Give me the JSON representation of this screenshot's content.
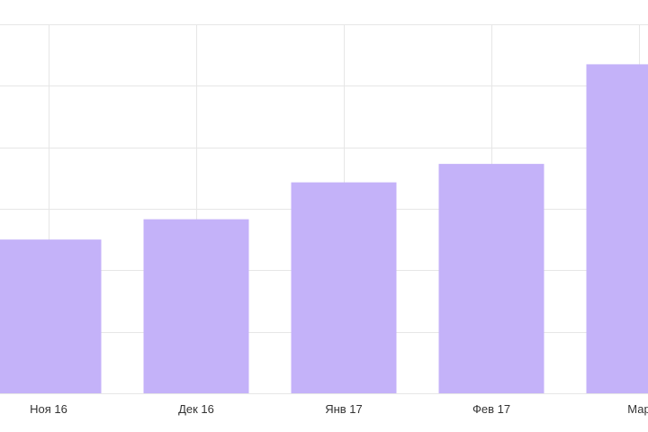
{
  "chart_data": {
    "type": "bar",
    "categories": [
      "Ноя 16",
      "Дек 16",
      "Янв 17",
      "Фев 17",
      "Мар"
    ],
    "values": [
      2.5,
      2.83,
      3.43,
      3.73,
      5.35
    ],
    "ylim": [
      0,
      6
    ],
    "grid": true,
    "title": "",
    "xlabel": "",
    "ylabel": ""
  },
  "colors": {
    "bar": "#c4b2f9",
    "grid": "#e6e6e6",
    "tick_text": "#333333",
    "background": "#ffffff"
  }
}
